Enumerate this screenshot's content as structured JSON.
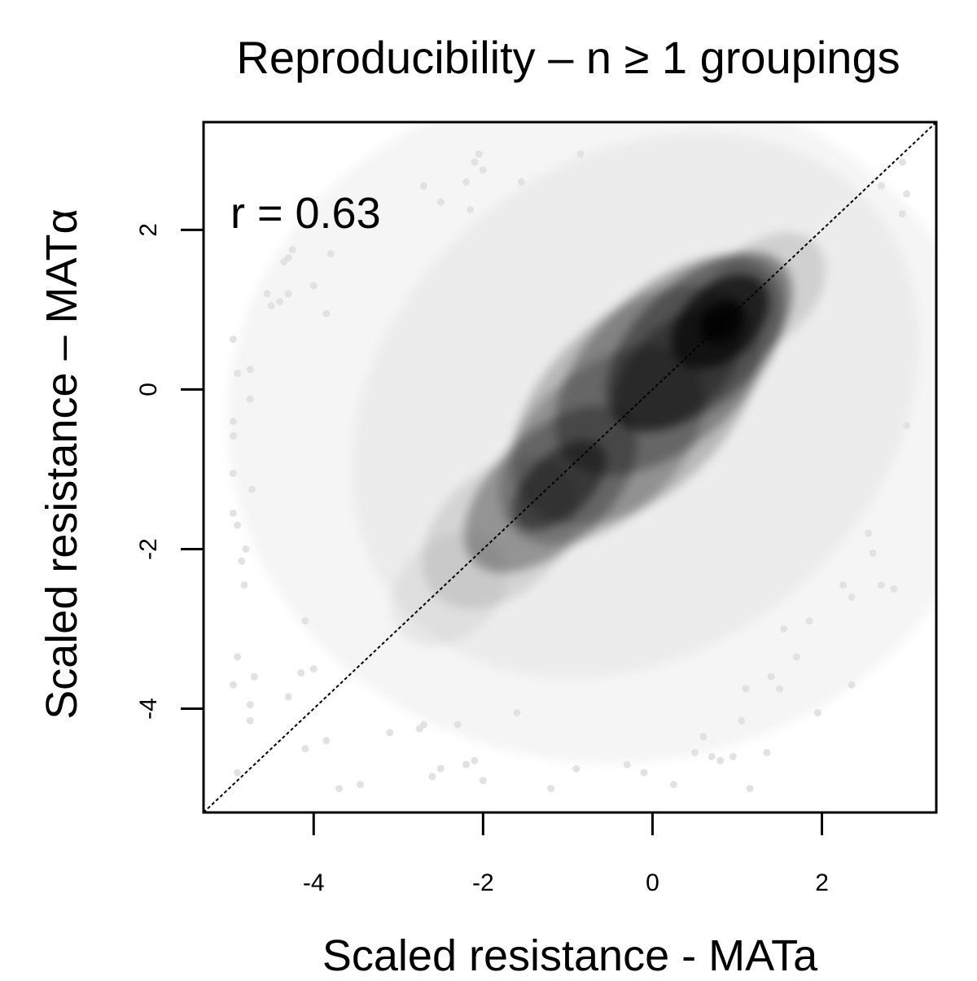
{
  "chart_data": {
    "type": "heatmap",
    "title": "Reproducibility – n ≥ 1 groupings",
    "xlabel": "Scaled resistance - MATa",
    "ylabel": "Scaled resistance – MATα",
    "annotation": "r = 0.63",
    "xlim": [
      -5.3,
      3.35
    ],
    "ylim": [
      -5.3,
      3.35
    ],
    "xticks": [
      -4,
      -2,
      0,
      2
    ],
    "yticks": [
      -4,
      -2,
      0,
      2
    ],
    "xtick_labels": [
      "-4",
      "-2",
      "0",
      "2"
    ],
    "ytick_labels": [
      "-4",
      "-2",
      "0",
      "2"
    ],
    "grid": false,
    "colormap": "grayscale (white = low density, black = high density)",
    "reference_line": {
      "style": "dashed",
      "slope": 1,
      "intercept": 0
    },
    "density_peaks": [
      {
        "x": 0.8,
        "y": 0.85,
        "relative_density": 1.0
      },
      {
        "x": 0.2,
        "y": 0.3,
        "relative_density": 0.75
      },
      {
        "x": -1.2,
        "y": -1.25,
        "relative_density": 0.7
      },
      {
        "x": -0.4,
        "y": -0.5,
        "relative_density": 0.5
      }
    ],
    "outlier_points": [
      {
        "x": -4.95,
        "y": 0.63
      },
      {
        "x": -4.9,
        "y": 0.2
      },
      {
        "x": -4.75,
        "y": 0.25
      },
      {
        "x": -4.75,
        "y": -0.12
      },
      {
        "x": -4.95,
        "y": -0.4
      },
      {
        "x": -4.95,
        "y": -0.58
      },
      {
        "x": -4.95,
        "y": -1.05
      },
      {
        "x": -4.73,
        "y": -1.25
      },
      {
        "x": -4.95,
        "y": -1.55
      },
      {
        "x": -4.9,
        "y": -1.7
      },
      {
        "x": -4.8,
        "y": -2.0
      },
      {
        "x": -4.85,
        "y": -2.15
      },
      {
        "x": -4.82,
        "y": -2.45
      },
      {
        "x": -4.9,
        "y": -3.35
      },
      {
        "x": -4.7,
        "y": -3.6
      },
      {
        "x": -4.95,
        "y": -3.7
      },
      {
        "x": -4.75,
        "y": -3.95
      },
      {
        "x": -4.75,
        "y": -4.15
      },
      {
        "x": -4.9,
        "y": -4.8
      },
      {
        "x": -4.5,
        "y": 1.05
      },
      {
        "x": -4.4,
        "y": 1.1
      },
      {
        "x": -4.3,
        "y": 1.2
      },
      {
        "x": -4.3,
        "y": 1.65
      },
      {
        "x": -4.25,
        "y": 1.75
      },
      {
        "x": -4.35,
        "y": 1.6
      },
      {
        "x": -4.0,
        "y": 1.3
      },
      {
        "x": -3.8,
        "y": 1.7
      },
      {
        "x": -3.85,
        "y": 0.95
      },
      {
        "x": -4.55,
        "y": 1.2
      },
      {
        "x": -4.15,
        "y": -3.55
      },
      {
        "x": -4.3,
        "y": -3.85
      },
      {
        "x": -4.0,
        "y": -3.5
      },
      {
        "x": -4.1,
        "y": -2.9
      },
      {
        "x": -4.1,
        "y": -4.5
      },
      {
        "x": -3.85,
        "y": -4.4
      },
      {
        "x": -3.7,
        "y": -5.0
      },
      {
        "x": -3.45,
        "y": -4.95
      },
      {
        "x": -3.1,
        "y": -4.3
      },
      {
        "x": -2.75,
        "y": -4.25
      },
      {
        "x": -2.7,
        "y": -4.2
      },
      {
        "x": -2.6,
        "y": -4.85
      },
      {
        "x": -2.5,
        "y": -4.75
      },
      {
        "x": -2.3,
        "y": -4.2
      },
      {
        "x": -2.2,
        "y": -4.7
      },
      {
        "x": -2.1,
        "y": -4.65
      },
      {
        "x": -2.0,
        "y": -4.9
      },
      {
        "x": -1.6,
        "y": -4.05
      },
      {
        "x": -1.2,
        "y": -5.0
      },
      {
        "x": -0.9,
        "y": -4.75
      },
      {
        "x": -0.3,
        "y": -4.7
      },
      {
        "x": -0.1,
        "y": -4.8
      },
      {
        "x": 0.25,
        "y": -4.95
      },
      {
        "x": 0.5,
        "y": -4.55
      },
      {
        "x": 0.6,
        "y": -4.35
      },
      {
        "x": 0.7,
        "y": -4.6
      },
      {
        "x": 0.8,
        "y": -4.65
      },
      {
        "x": 0.95,
        "y": -4.6
      },
      {
        "x": 1.05,
        "y": -4.15
      },
      {
        "x": 1.1,
        "y": -3.75
      },
      {
        "x": 1.15,
        "y": -5.0
      },
      {
        "x": 1.35,
        "y": -4.55
      },
      {
        "x": 1.4,
        "y": -3.6
      },
      {
        "x": 1.5,
        "y": -3.75
      },
      {
        "x": 1.55,
        "y": -3.0
      },
      {
        "x": 1.7,
        "y": -3.35
      },
      {
        "x": 1.85,
        "y": -2.9
      },
      {
        "x": 1.95,
        "y": -4.05
      },
      {
        "x": 2.25,
        "y": -2.45
      },
      {
        "x": 2.35,
        "y": -2.6
      },
      {
        "x": 2.35,
        "y": -3.7
      },
      {
        "x": 2.55,
        "y": -1.8
      },
      {
        "x": 2.6,
        "y": -2.05
      },
      {
        "x": 2.7,
        "y": -2.45
      },
      {
        "x": 2.85,
        "y": -2.5
      },
      {
        "x": 2.95,
        "y": 2.85
      },
      {
        "x": 3.0,
        "y": 2.45
      },
      {
        "x": 2.95,
        "y": 2.2
      },
      {
        "x": 3.0,
        "y": -0.45
      },
      {
        "x": 2.7,
        "y": 2.55
      },
      {
        "x": -2.7,
        "y": 2.55
      },
      {
        "x": -2.5,
        "y": 2.35
      },
      {
        "x": -2.2,
        "y": 2.6
      },
      {
        "x": -2.15,
        "y": 2.25
      },
      {
        "x": -2.1,
        "y": 2.85
      },
      {
        "x": -2.05,
        "y": 2.95
      },
      {
        "x": -2.0,
        "y": 2.75
      },
      {
        "x": -1.55,
        "y": 2.6
      },
      {
        "x": -0.85,
        "y": 2.95
      }
    ]
  }
}
